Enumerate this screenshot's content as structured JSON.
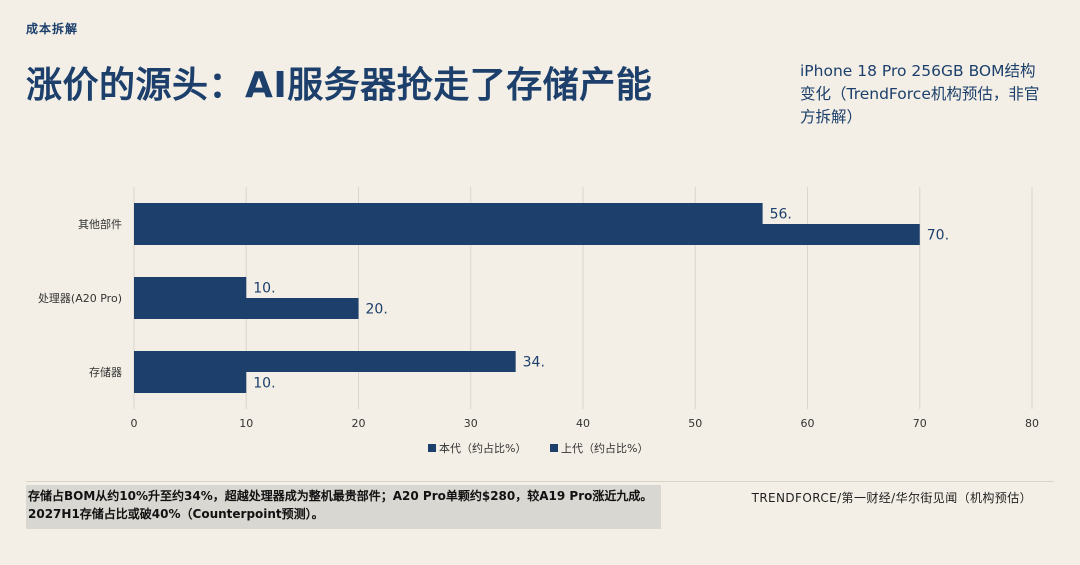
{
  "header": {
    "kicker": "成本拆解",
    "title": "涨价的源头：AI服务器抢走了存储产能",
    "side_note": "iPhone 18 Pro 256GB BOM结构变化（TrendForce机构预估，非官方拆解）"
  },
  "footer": {
    "note_line1": "存储占BOM从约10%升至约34%，超越处理器成为整机最贵部件；A20 Pro单颗约$280，较A19 Pro涨近九成。",
    "note_line2": "2027H1存储占比或破40%（Counterpoint预测）。",
    "source": "TRENDFORCE/第一财经/华尔街见闻（机构预估）"
  },
  "colors": {
    "background": "#f3efe6",
    "bar": "#1c3f6b",
    "grid": "#d9d6cf",
    "axis_text": "#333333"
  },
  "chart_data": {
    "type": "bar",
    "orientation": "horizontal",
    "categories": [
      "其他部件",
      "处理器(A20 Pro)",
      "存储器"
    ],
    "series": [
      {
        "name": "本代（约占比%）",
        "values": [
          56,
          10,
          34
        ],
        "labels": [
          "56.",
          "10.",
          "34."
        ]
      },
      {
        "name": "上代（约占比%）",
        "values": [
          70,
          20,
          10
        ],
        "labels": [
          "70.",
          "20.",
          "10."
        ]
      }
    ],
    "xlim": [
      0,
      80
    ],
    "xticks": [
      "0",
      "10",
      "20",
      "30",
      "40",
      "50",
      "60",
      "70",
      "80"
    ],
    "grid": true,
    "legend_position": "bottom"
  }
}
